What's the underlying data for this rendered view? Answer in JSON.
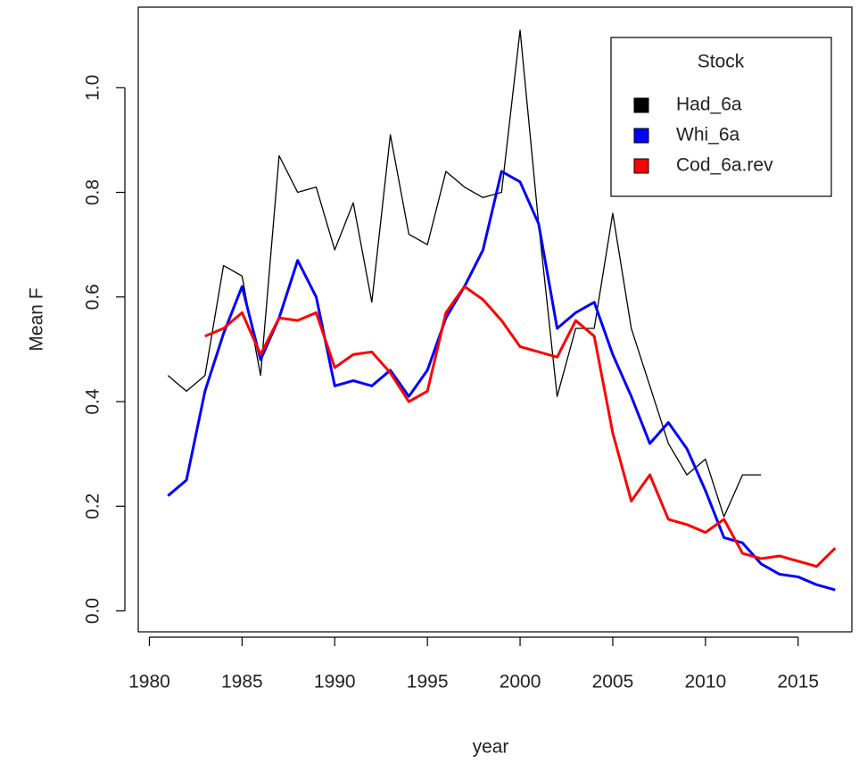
{
  "chart_data": {
    "type": "line",
    "x_label": "year",
    "y_label": "Mean F",
    "legend_title": "Stock",
    "legend_position": "top-right",
    "x": [
      1981,
      1982,
      1983,
      1984,
      1985,
      1986,
      1987,
      1988,
      1989,
      1990,
      1991,
      1992,
      1993,
      1994,
      1995,
      1996,
      1997,
      1998,
      1999,
      2000,
      2001,
      2002,
      2003,
      2004,
      2005,
      2006,
      2007,
      2008,
      2009,
      2010,
      2011,
      2012,
      2013,
      2014,
      2015,
      2016,
      2017
    ],
    "series": [
      {
        "name": "Had_6a",
        "color": "#000000",
        "values": [
          0.45,
          0.42,
          0.45,
          0.66,
          0.64,
          0.45,
          0.87,
          0.8,
          0.81,
          0.69,
          0.78,
          0.59,
          0.91,
          0.72,
          0.7,
          0.84,
          0.81,
          0.79,
          0.8,
          1.11,
          0.74,
          0.41,
          0.54,
          0.54,
          0.76,
          0.54,
          0.43,
          0.32,
          0.26,
          0.29,
          0.18,
          0.26,
          0.26,
          null,
          null,
          null,
          null
        ]
      },
      {
        "name": "Whi_6a",
        "color": "#0000ff",
        "values": [
          0.22,
          0.25,
          0.42,
          0.53,
          0.62,
          0.48,
          0.56,
          0.67,
          0.6,
          0.43,
          0.44,
          0.43,
          0.46,
          0.41,
          0.46,
          0.56,
          0.62,
          0.69,
          0.84,
          0.82,
          0.74,
          0.54,
          0.57,
          0.59,
          0.49,
          0.41,
          0.32,
          0.36,
          0.31,
          0.23,
          0.14,
          0.13,
          0.09,
          0.07,
          0.065,
          0.05,
          0.04
        ]
      },
      {
        "name": "Cod_6a.rev",
        "color": "#ff0000",
        "values": [
          null,
          null,
          0.525,
          0.54,
          0.57,
          0.49,
          0.56,
          0.555,
          0.57,
          0.465,
          0.49,
          0.495,
          0.455,
          0.4,
          0.42,
          0.57,
          0.62,
          0.595,
          0.555,
          0.505,
          0.495,
          0.485,
          0.555,
          0.525,
          0.34,
          0.21,
          0.26,
          0.175,
          0.165,
          0.15,
          0.175,
          0.11,
          0.1,
          0.105,
          0.095,
          0.085,
          0.12
        ]
      }
    ],
    "xlim": [
      1979.4,
      2017.9
    ],
    "ylim": [
      -0.04,
      1.154
    ],
    "xticks": [
      1980,
      1985,
      1990,
      1995,
      2000,
      2005,
      2010,
      2015
    ],
    "yticks": [
      {
        "value": 0,
        "label": "0.0"
      },
      0.2,
      0.4,
      0.6,
      0.8,
      {
        "value": 1,
        "label": "1.0"
      }
    ]
  }
}
